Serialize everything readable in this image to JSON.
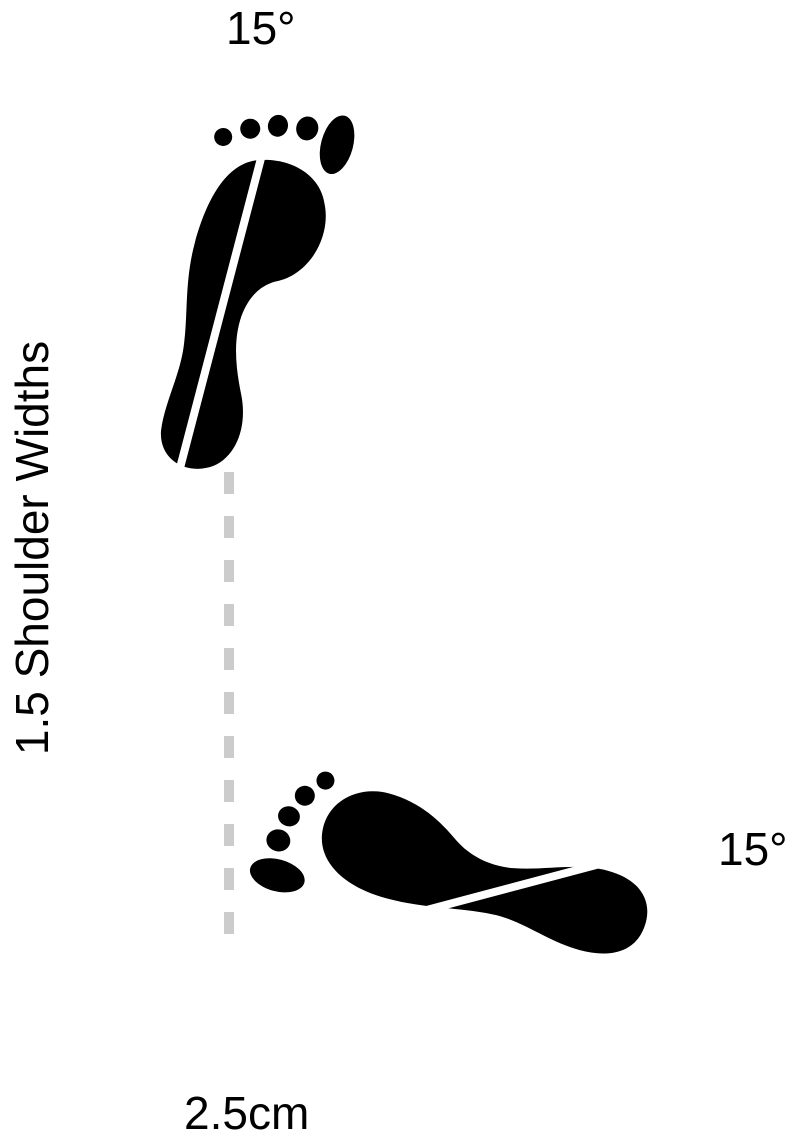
{
  "labels": {
    "top_angle": "15°",
    "bottom_angle": "15°",
    "stance_width": "1.5 Shoulder Widths",
    "offset_distance": "2.5cm"
  },
  "colors": {
    "footprint": "#000000",
    "axis_line": "#ffffff",
    "guide_line": "#cccccc"
  },
  "icons": {
    "front_foot": "footprint-icon",
    "back_foot": "footprint-icon"
  }
}
